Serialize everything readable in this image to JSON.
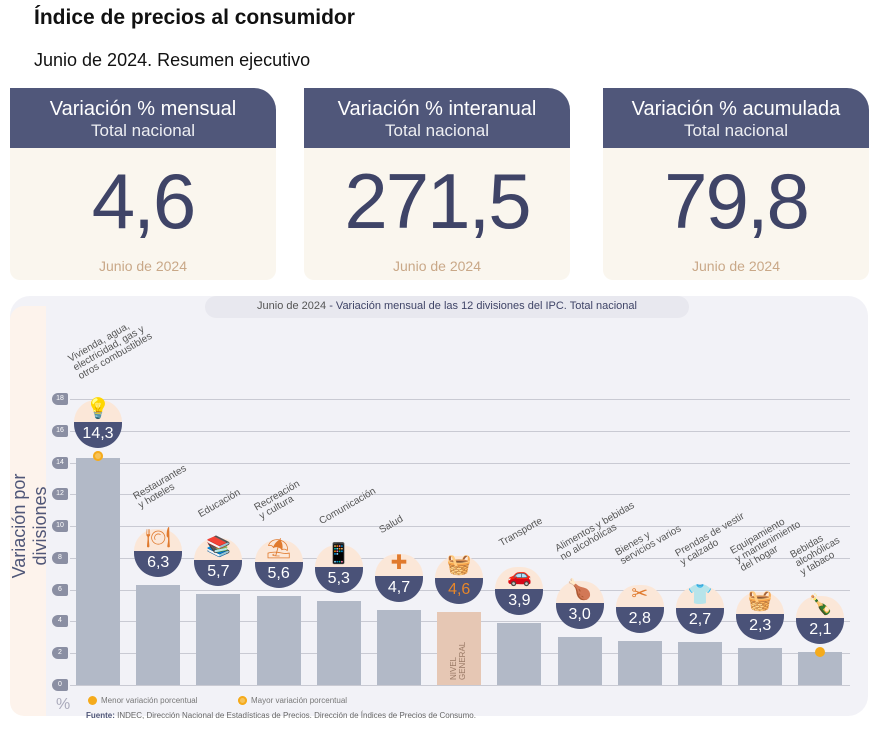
{
  "header": {
    "title": "Índice de precios al consumidor",
    "subtitle": "Junio de 2024. Resumen ejecutivo"
  },
  "cards": [
    {
      "title": "Variación % mensual",
      "subtitle": "Total nacional",
      "value": "4,6",
      "date": "Junio de 2024"
    },
    {
      "title": "Variación % interanual",
      "subtitle": "Total nacional",
      "value": "271,5",
      "date": "Junio de 2024"
    },
    {
      "title": "Variación % acumulada",
      "subtitle": "Total nacional",
      "value": "79,8",
      "date": "Junio de 2024"
    }
  ],
  "colors": {
    "header": "#50577a",
    "bar": "#b2b9c7",
    "general": "#e6c7b4",
    "dot": "#f5ab1c"
  },
  "chart_data": {
    "type": "bar",
    "title_date": "Junio de 2024",
    "title": "- Variación mensual de las 12 divisiones del IPC. Total nacional",
    "ylabel": "Variación por divisiones",
    "yunit": "%",
    "ylim": [
      0,
      18
    ],
    "yticks": [
      "0",
      "2",
      "4",
      "6",
      "8",
      "10",
      "12",
      "14",
      "16",
      "18"
    ],
    "categories": [
      "Vivienda, agua,\nelectricidad, gas y\notros combustibles",
      "Restaurantes\ny hoteles",
      "Educación",
      "Recreación\ny cultura",
      "Comunicación",
      "Salud",
      "",
      "Transporte",
      "Alimentos y bebidas\nno alcohólicas",
      "Bienes y\nservicios varios",
      "Prendas de vestir\ny calzado",
      "Equipamiento\ny mantenimiento\ndel hogar",
      "Bebidas\nalcohólicas\ny tabaco"
    ],
    "values": [
      14.3,
      6.3,
      5.7,
      5.6,
      5.3,
      4.7,
      4.6,
      3.9,
      3.0,
      2.8,
      2.7,
      2.3,
      2.1
    ],
    "value_labels": [
      "14,3",
      "6,3",
      "5,7",
      "5,6",
      "5,3",
      "4,7",
      "4,6",
      "3,9",
      "3,0",
      "2,8",
      "2,7",
      "2,3",
      "2,1"
    ],
    "icons": [
      "lightbulb-key-icon",
      "restaurant-icon",
      "books-icon",
      "umbrella-icon",
      "phone-icon",
      "health-icon",
      "basket-icon",
      "sube-car-icon",
      "food-icon",
      "comb-scissors-icon",
      "tshirt-icon",
      "appliance-icon",
      "bottle-icon"
    ],
    "general_index": 6,
    "general_label": "NIVEL\nGENERAL",
    "max_index": 0,
    "min_index": 12,
    "legend": [
      "Menor variación porcentual",
      "Mayor variación porcentual"
    ],
    "source_label": "Fuente:",
    "source": "INDEC, Dirección Nacional de Estadísticas de Precios. Dirección de Índices de Precios de Consumo."
  }
}
